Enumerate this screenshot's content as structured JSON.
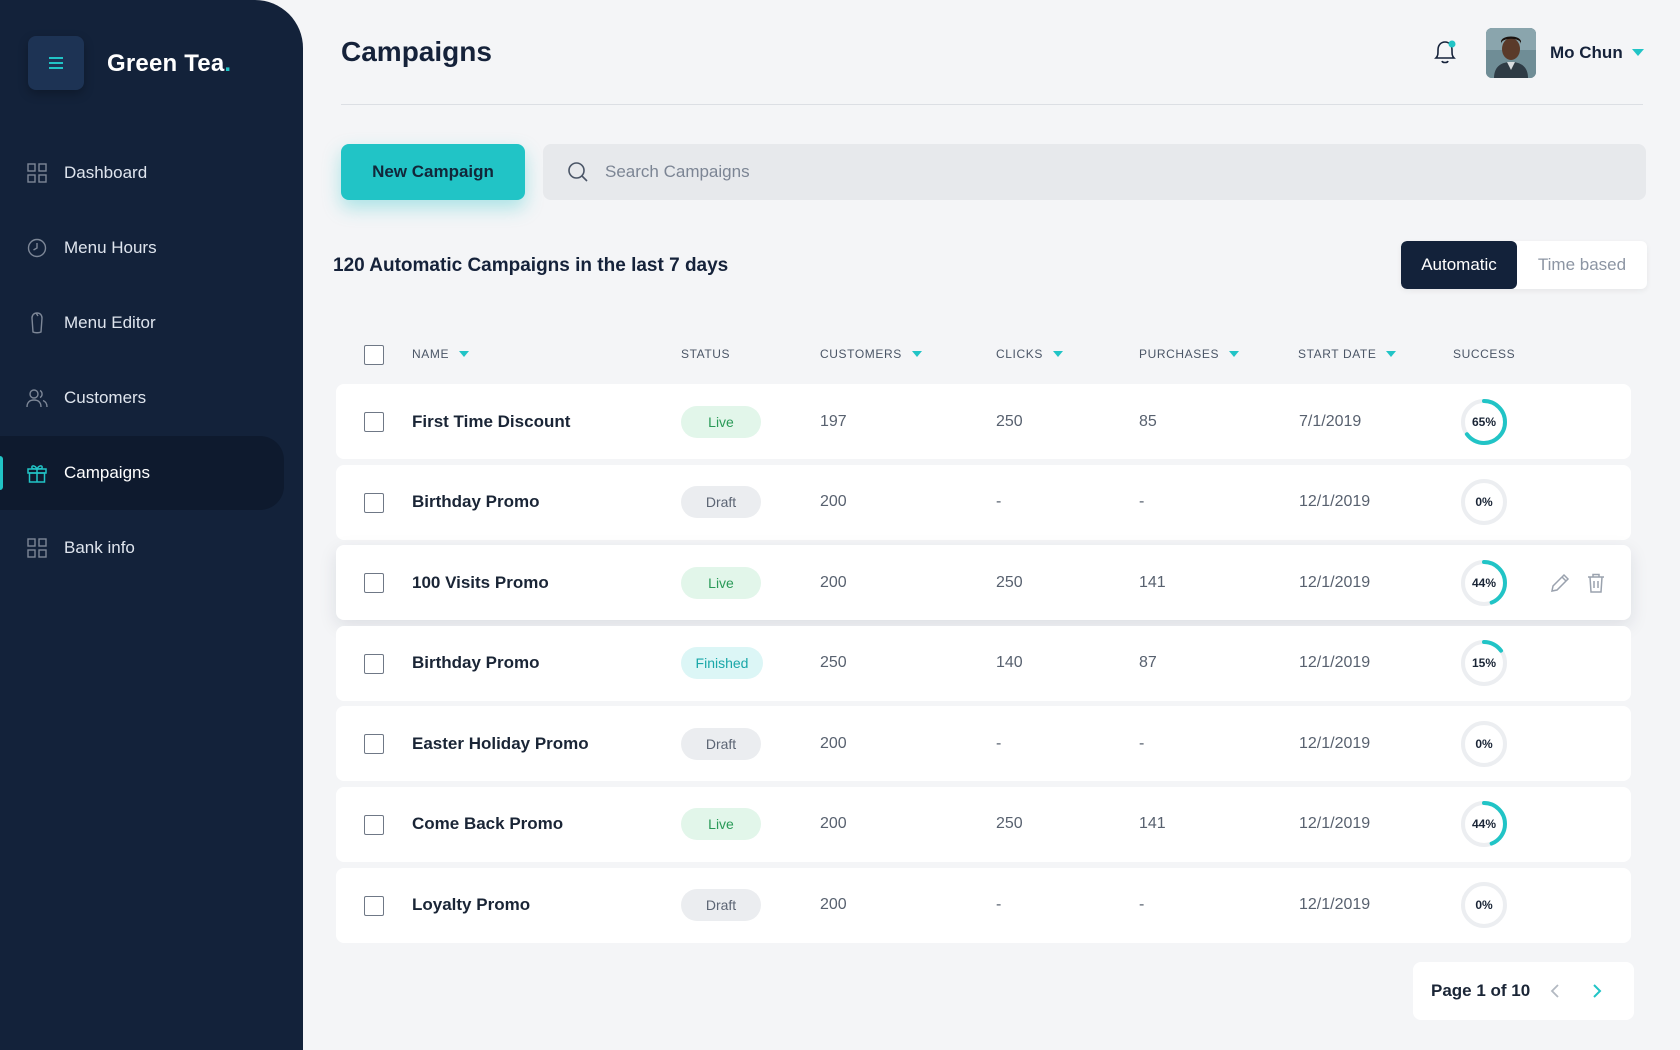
{
  "app": {
    "brand": "Green Tea",
    "brand_dot": "."
  },
  "sidebar": {
    "items": [
      {
        "label": "Dashboard",
        "icon": "grid-icon"
      },
      {
        "label": "Menu Hours",
        "icon": "clock-icon"
      },
      {
        "label": "Menu Editor",
        "icon": "cup-icon"
      },
      {
        "label": "Customers",
        "icon": "users-icon"
      },
      {
        "label": "Campaigns",
        "icon": "gift-icon",
        "active": true
      },
      {
        "label": "Bank info",
        "icon": "grid-icon"
      }
    ]
  },
  "header": {
    "title": "Campaigns",
    "user_name": "Mo Chun",
    "notification_icon": "bell-icon"
  },
  "toolbar": {
    "new_label": "New Campaign",
    "search_placeholder": "Search Campaigns"
  },
  "summary": "120 Automatic Campaigns in the last 7 days",
  "mode_toggle": {
    "active": "Automatic",
    "inactive": "Time based"
  },
  "table": {
    "columns": {
      "name": "NAME",
      "status": "STATUS",
      "customers": "CUSTOMERS",
      "clicks": "CLICKS",
      "purchases": "PURCHASES",
      "start_date": "START DATE",
      "success": "SUCCESS"
    },
    "rows": [
      {
        "name": "First Time Discount",
        "status": "Live",
        "customers": "197",
        "clicks": "250",
        "purchases": "85",
        "start_date": "7/1/2019",
        "success_label": "65%",
        "success": 0.65
      },
      {
        "name": "Birthday Promo",
        "status": "Draft",
        "customers": "200",
        "clicks": "-",
        "purchases": "-",
        "start_date": "12/1/2019",
        "success_label": "0%",
        "success": 0
      },
      {
        "name": "100 Visits Promo",
        "status": "Live",
        "customers": "200",
        "clicks": "250",
        "purchases": "141",
        "start_date": "12/1/2019",
        "success_label": "44%",
        "success": 0.44,
        "hover": true
      },
      {
        "name": "Birthday Promo",
        "status": "Finished",
        "customers": "250",
        "clicks": "140",
        "purchases": "87",
        "start_date": "12/1/2019",
        "success_label": "15%",
        "success": 0.15
      },
      {
        "name": "Easter Holiday Promo",
        "status": "Draft",
        "customers": "200",
        "clicks": "-",
        "purchases": "-",
        "start_date": "12/1/2019",
        "success_label": "0%",
        "success": 0
      },
      {
        "name": "Come Back Promo",
        "status": "Live",
        "customers": "200",
        "clicks": "250",
        "purchases": "141",
        "start_date": "12/1/2019",
        "success_label": "44%",
        "success": 0.44
      },
      {
        "name": "Loyalty Promo",
        "status": "Draft",
        "customers": "200",
        "clicks": "-",
        "purchases": "-",
        "start_date": "12/1/2019",
        "success_label": "0%",
        "success": 0
      }
    ]
  },
  "pagination": {
    "label": "Page 1 of 10"
  },
  "colors": {
    "sidebar": "#13223a",
    "accent": "#21c4c6",
    "live": "#2a9a58",
    "background": "#f4f5f7"
  }
}
